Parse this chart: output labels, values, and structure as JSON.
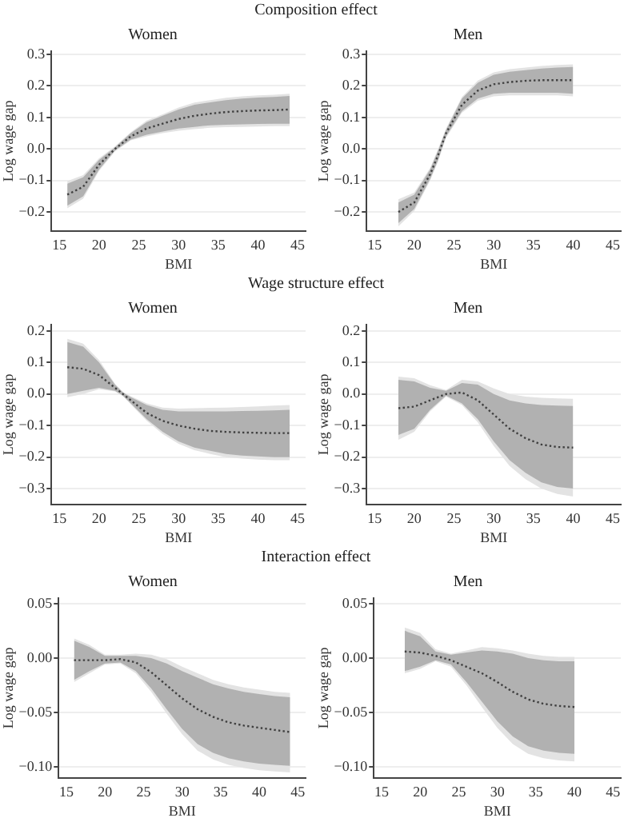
{
  "chart_data": [
    {
      "type": "line",
      "title": "Women",
      "annotations": [
        "Composition effect"
      ],
      "xlabel": "BMI",
      "ylabel": "Log wage gap",
      "xlim": [
        14,
        46
      ],
      "ylim": [
        -0.26,
        0.31
      ],
      "xticks": [
        15,
        20,
        25,
        30,
        35,
        40,
        45
      ],
      "yticks": [
        {
          "value": -0.2,
          "label": "−0.2"
        },
        {
          "value": -0.1,
          "label": "−0.1"
        },
        {
          "value": 0,
          "label": "0.0"
        },
        {
          "value": 0.1,
          "label": "0.1"
        },
        {
          "value": 0.2,
          "label": "0.2"
        },
        {
          "value": 0.3,
          "label": "0.3"
        }
      ],
      "grid": "y",
      "marker": "none",
      "line_style": "dotted",
      "x": [
        16,
        18,
        20,
        22,
        24,
        26,
        28,
        30,
        32,
        34,
        36,
        38,
        40,
        42,
        44
      ],
      "series": [
        {
          "color": "#e3e3e3",
          "values": [
            null,
            null,
            null,
            null,
            null,
            null,
            null,
            null,
            null,
            null,
            null,
            null,
            null,
            null,
            null
          ],
          "lower": [
            -0.188,
            -0.158,
            -0.07,
            -0.008,
            0.027,
            0.04,
            0.05,
            0.058,
            0.063,
            0.067,
            0.069,
            0.07,
            0.071,
            0.072,
            0.072
          ],
          "upper": [
            -0.102,
            -0.083,
            -0.03,
            0.008,
            0.053,
            0.09,
            0.11,
            0.131,
            0.147,
            0.155,
            0.162,
            0.167,
            0.17,
            0.172,
            0.175
          ]
        },
        {
          "color": "#404040",
          "values": [
            -0.145,
            -0.12,
            -0.05,
            0.0,
            0.04,
            0.065,
            0.08,
            0.095,
            0.105,
            0.112,
            0.117,
            0.12,
            0.122,
            0.123,
            0.125
          ],
          "lower": [
            -0.18,
            -0.15,
            -0.065,
            -0.005,
            0.03,
            0.045,
            0.055,
            0.065,
            0.07,
            0.075,
            0.077,
            0.078,
            0.079,
            0.08,
            0.08
          ],
          "upper": [
            -0.11,
            -0.09,
            -0.035,
            0.005,
            0.05,
            0.085,
            0.105,
            0.125,
            0.14,
            0.148,
            0.155,
            0.16,
            0.163,
            0.165,
            0.168
          ]
        }
      ]
    },
    {
      "type": "line",
      "title": "Men",
      "xlabel": "BMI",
      "ylabel": "Log wage gap",
      "xlim": [
        14,
        46
      ],
      "ylim": [
        -0.26,
        0.31
      ],
      "xticks": [
        15,
        20,
        25,
        30,
        35,
        40,
        45
      ],
      "yticks": [
        {
          "value": -0.2,
          "label": "−0.2"
        },
        {
          "value": -0.1,
          "label": "−0.1"
        },
        {
          "value": 0,
          "label": "0.0"
        },
        {
          "value": 0.1,
          "label": "0.1"
        },
        {
          "value": 0.2,
          "label": "0.2"
        },
        {
          "value": 0.3,
          "label": "0.3"
        }
      ],
      "grid": "y",
      "marker": "none",
      "line_style": "dotted",
      "x": [
        18,
        20,
        22,
        23,
        24,
        26,
        28,
        30,
        32,
        34,
        36,
        38,
        40
      ],
      "series": [
        {
          "color": "#e3e3e3",
          "values": [
            null,
            null,
            null,
            null,
            null,
            null,
            null,
            null,
            null,
            null,
            null,
            null,
            null
          ],
          "lower": [
            -0.245,
            -0.197,
            -0.1,
            -0.04,
            0.035,
            0.115,
            0.153,
            0.167,
            0.17,
            0.17,
            0.17,
            0.17,
            0.167
          ],
          "upper": [
            -0.16,
            -0.138,
            -0.06,
            0.0,
            0.065,
            0.165,
            0.217,
            0.243,
            0.253,
            0.258,
            0.263,
            0.266,
            0.268
          ]
        },
        {
          "color": "#404040",
          "values": [
            -0.2,
            -0.17,
            -0.08,
            -0.02,
            0.05,
            0.14,
            0.185,
            0.205,
            0.212,
            0.216,
            0.218,
            0.218,
            0.218
          ],
          "lower": [
            -0.235,
            -0.19,
            -0.095,
            -0.035,
            0.04,
            0.12,
            0.16,
            0.175,
            0.178,
            0.178,
            0.178,
            0.178,
            0.175
          ],
          "upper": [
            -0.17,
            -0.145,
            -0.065,
            -0.005,
            0.06,
            0.16,
            0.21,
            0.235,
            0.245,
            0.25,
            0.255,
            0.258,
            0.26
          ]
        }
      ]
    },
    {
      "type": "line",
      "title": "Women",
      "annotations": [
        "Wage structure effect"
      ],
      "xlabel": "BMI",
      "ylabel": "Log wage gap",
      "xlim": [
        14,
        46
      ],
      "ylim": [
        -0.35,
        0.22
      ],
      "xticks": [
        15,
        20,
        25,
        30,
        35,
        40,
        45
      ],
      "yticks": [
        {
          "value": -0.3,
          "label": "−0.3"
        },
        {
          "value": -0.2,
          "label": "−0.2"
        },
        {
          "value": -0.1,
          "label": "−0.1"
        },
        {
          "value": 0,
          "label": "0.0"
        },
        {
          "value": 0.1,
          "label": "0.1"
        },
        {
          "value": 0.2,
          "label": "0.2"
        }
      ],
      "grid": "y",
      "marker": "none",
      "line_style": "dotted",
      "x": [
        16,
        18,
        20,
        22,
        23,
        24,
        26,
        28,
        30,
        32,
        34,
        36,
        38,
        40,
        42,
        44
      ],
      "series": [
        {
          "color": "#e3e3e3",
          "values": [
            null,
            null,
            null,
            null,
            null,
            null,
            null,
            null,
            null,
            null,
            null,
            null,
            null,
            null,
            null,
            null
          ],
          "lower": [
            -0.01,
            0.0,
            0.015,
            0.008,
            -0.007,
            -0.033,
            -0.085,
            -0.127,
            -0.158,
            -0.178,
            -0.19,
            -0.2,
            -0.205,
            -0.208,
            -0.21,
            -0.21
          ],
          "upper": [
            0.175,
            0.16,
            0.108,
            0.033,
            0.007,
            -0.007,
            -0.03,
            -0.043,
            -0.046,
            -0.045,
            -0.044,
            -0.043,
            -0.041,
            -0.039,
            -0.037,
            -0.035
          ]
        },
        {
          "color": "#404040",
          "values": [
            0.085,
            0.08,
            0.06,
            0.02,
            0.0,
            -0.02,
            -0.06,
            -0.085,
            -0.1,
            -0.11,
            -0.117,
            -0.12,
            -0.122,
            -0.123,
            -0.124,
            -0.124
          ],
          "lower": [
            0.0,
            0.01,
            0.02,
            0.01,
            -0.005,
            -0.03,
            -0.08,
            -0.12,
            -0.15,
            -0.17,
            -0.18,
            -0.19,
            -0.195,
            -0.198,
            -0.2,
            -0.2
          ],
          "upper": [
            0.165,
            0.15,
            0.1,
            0.03,
            0.005,
            -0.01,
            -0.035,
            -0.05,
            -0.055,
            -0.055,
            -0.055,
            -0.055,
            -0.054,
            -0.053,
            -0.052,
            -0.05
          ]
        }
      ]
    },
    {
      "type": "line",
      "title": "Men",
      "xlabel": "BMI",
      "ylabel": "Log wage gap",
      "xlim": [
        14,
        46
      ],
      "ylim": [
        -0.35,
        0.22
      ],
      "xticks": [
        15,
        20,
        25,
        30,
        35,
        40,
        45
      ],
      "yticks": [
        {
          "value": -0.3,
          "label": "−0.3"
        },
        {
          "value": -0.2,
          "label": "−0.2"
        },
        {
          "value": -0.1,
          "label": "−0.1"
        },
        {
          "value": 0,
          "label": "0.0"
        },
        {
          "value": 0.1,
          "label": "0.1"
        },
        {
          "value": 0.2,
          "label": "0.2"
        }
      ],
      "grid": "y",
      "marker": "none",
      "line_style": "dotted",
      "x": [
        18,
        20,
        22,
        24,
        26,
        28,
        30,
        32,
        34,
        36,
        38,
        40
      ],
      "series": [
        {
          "color": "#e3e3e3",
          "values": [
            null,
            null,
            null,
            null,
            null,
            null,
            null,
            null,
            null,
            null,
            null,
            null
          ],
          "lower": [
            -0.145,
            -0.12,
            -0.055,
            -0.008,
            -0.035,
            -0.09,
            -0.165,
            -0.228,
            -0.27,
            -0.3,
            -0.317,
            -0.325
          ],
          "upper": [
            0.055,
            0.05,
            0.028,
            0.013,
            0.045,
            0.04,
            0.018,
            0.0,
            -0.008,
            -0.012,
            -0.014,
            -0.015
          ]
        },
        {
          "color": "#404040",
          "values": [
            -0.045,
            -0.04,
            -0.02,
            0.0,
            0.005,
            -0.02,
            -0.065,
            -0.11,
            -0.14,
            -0.16,
            -0.168,
            -0.17
          ],
          "lower": [
            -0.13,
            -0.11,
            -0.05,
            -0.005,
            -0.03,
            -0.08,
            -0.15,
            -0.21,
            -0.25,
            -0.28,
            -0.295,
            -0.3
          ],
          "upper": [
            0.045,
            0.04,
            0.02,
            0.01,
            0.035,
            0.03,
            0.0,
            -0.02,
            -0.03,
            -0.035,
            -0.037,
            -0.038
          ]
        }
      ]
    },
    {
      "type": "line",
      "title": "Women",
      "annotations": [
        "Interaction effect"
      ],
      "xlabel": "BMI",
      "ylabel": "Log wage gap",
      "xlim": [
        14,
        46
      ],
      "ylim": [
        -0.11,
        0.055
      ],
      "xticks": [
        15,
        20,
        25,
        30,
        35,
        40,
        45
      ],
      "yticks": [
        {
          "value": -0.1,
          "label": "−0.10"
        },
        {
          "value": -0.05,
          "label": "−0.05"
        },
        {
          "value": 0,
          "label": "0.00"
        },
        {
          "value": 0.05,
          "label": "0.05"
        }
      ],
      "grid": "y",
      "marker": "none",
      "line_style": "dotted",
      "x": [
        16,
        18,
        20,
        22,
        24,
        26,
        28,
        30,
        32,
        34,
        36,
        38,
        40,
        42,
        44
      ],
      "series": [
        {
          "color": "#e3e3e3",
          "values": [
            null,
            null,
            null,
            null,
            null,
            null,
            null,
            null,
            null,
            null,
            null,
            null,
            null,
            null,
            null
          ],
          "lower": [
            -0.022,
            -0.014,
            -0.006,
            -0.005,
            -0.014,
            -0.031,
            -0.051,
            -0.07,
            -0.085,
            -0.093,
            -0.098,
            -0.101,
            -0.103,
            -0.104,
            -0.105
          ],
          "upper": [
            0.018,
            0.012,
            0.003,
            0.003,
            0.004,
            0.003,
            -0.001,
            -0.008,
            -0.014,
            -0.02,
            -0.024,
            -0.027,
            -0.029,
            -0.031,
            -0.032
          ]
        },
        {
          "color": "#404040",
          "values": [
            -0.002,
            -0.002,
            -0.002,
            -0.001,
            -0.004,
            -0.013,
            -0.025,
            -0.037,
            -0.047,
            -0.054,
            -0.059,
            -0.062,
            -0.064,
            -0.066,
            -0.068
          ],
          "lower": [
            -0.02,
            -0.012,
            -0.005,
            -0.004,
            -0.012,
            -0.028,
            -0.047,
            -0.065,
            -0.079,
            -0.087,
            -0.092,
            -0.095,
            -0.097,
            -0.098,
            -0.099
          ],
          "upper": [
            0.016,
            0.01,
            0.002,
            0.002,
            0.002,
            0.0,
            -0.005,
            -0.012,
            -0.018,
            -0.024,
            -0.028,
            -0.031,
            -0.033,
            -0.035,
            -0.036
          ]
        }
      ]
    },
    {
      "type": "line",
      "title": "Men",
      "xlabel": "BMI",
      "ylabel": "Log wage gap",
      "xlim": [
        14,
        46
      ],
      "ylim": [
        -0.11,
        0.055
      ],
      "xticks": [
        15,
        20,
        25,
        30,
        35,
        40,
        45
      ],
      "yticks": [
        {
          "value": -0.1,
          "label": "−0.10"
        },
        {
          "value": -0.05,
          "label": "−0.05"
        },
        {
          "value": 0,
          "label": "0.00"
        },
        {
          "value": 0.05,
          "label": "0.05"
        }
      ],
      "grid": "y",
      "marker": "none",
      "line_style": "dotted",
      "x": [
        18,
        20,
        22,
        24,
        26,
        28,
        30,
        32,
        34,
        36,
        38,
        40
      ],
      "series": [
        {
          "color": "#e3e3e3",
          "values": [
            null,
            null,
            null,
            null,
            null,
            null,
            null,
            null,
            null,
            null,
            null,
            null
          ],
          "lower": [
            -0.014,
            -0.01,
            -0.003,
            -0.008,
            -0.025,
            -0.045,
            -0.064,
            -0.079,
            -0.088,
            -0.092,
            -0.094,
            -0.095
          ],
          "upper": [
            0.028,
            0.023,
            0.008,
            0.004,
            0.007,
            0.01,
            0.009,
            0.007,
            0.004,
            0.002,
            0.001,
            0.001
          ]
        },
        {
          "color": "#404040",
          "values": [
            0.006,
            0.005,
            0.002,
            -0.002,
            -0.008,
            -0.014,
            -0.022,
            -0.031,
            -0.038,
            -0.042,
            -0.044,
            -0.045
          ],
          "lower": [
            -0.012,
            -0.008,
            -0.002,
            -0.006,
            -0.022,
            -0.04,
            -0.058,
            -0.072,
            -0.081,
            -0.085,
            -0.087,
            -0.088
          ],
          "upper": [
            0.025,
            0.02,
            0.006,
            0.003,
            0.005,
            0.007,
            0.006,
            0.004,
            0.0,
            -0.002,
            -0.003,
            -0.003
          ]
        }
      ]
    }
  ]
}
